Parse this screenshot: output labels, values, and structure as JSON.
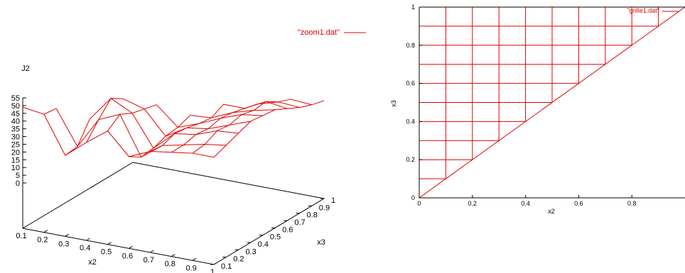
{
  "colors": {
    "series": "#e00000",
    "axis": "#000000"
  },
  "chart_data": [
    {
      "type": "line",
      "subtype": "surface-3d-wireframe",
      "title": "",
      "xlabel": "x2",
      "ylabel": "x3",
      "zlabel": "J2",
      "x_ticks": [
        "0.1",
        "0.2",
        "0.3",
        "0.4",
        "0.5",
        "0.6",
        "0.7",
        "0.8",
        "0.9",
        "1"
      ],
      "y_ticks": [
        "0.1",
        "0.2",
        "0.3",
        "0.4",
        "0.5",
        "0.6",
        "0.7",
        "0.8",
        "0.9",
        "1"
      ],
      "z_ticks": [
        "0",
        "5",
        "10",
        "15",
        "20",
        "25",
        "30",
        "35",
        "40",
        "45",
        "50",
        "55"
      ],
      "xlim": [
        0.1,
        1
      ],
      "ylim": [
        0.1,
        1
      ],
      "zlim": [
        0,
        55
      ],
      "legend": {
        "label": "\"zoom1.dat\"",
        "position": "top-right"
      },
      "grid": false,
      "series": [
        {
          "name": "\"zoom1.dat\"",
          "x": [
            0.1,
            0.2,
            0.3,
            0.4,
            0.5,
            0.6,
            0.7,
            0.8,
            0.9,
            1.0
          ],
          "y": [
            0.1,
            0.2,
            0.3,
            0.4,
            0.5,
            0.6,
            0.7,
            0.8,
            0.9,
            1.0
          ],
          "z": [
            [
              49,
              47,
              23,
              34,
              44,
              30,
              36,
              38,
              40,
              40
            ],
            [
              null,
              46,
              24,
              44,
              50,
              25,
              35,
              38,
              41,
              43
            ],
            [
              null,
              null,
              37,
              53,
              46,
              26,
              38,
              40,
              45,
              46
            ],
            [
              null,
              null,
              null,
              48,
              44,
              29,
              37,
              39,
              44,
              49
            ],
            [
              null,
              null,
              null,
              null,
              42,
              30,
              35,
              41,
              46,
              48
            ],
            [
              null,
              null,
              null,
              null,
              null,
              33,
              34,
              40,
              44,
              47
            ],
            [
              null,
              null,
              null,
              null,
              null,
              null,
              38,
              38,
              45,
              43
            ],
            [
              null,
              null,
              null,
              null,
              null,
              null,
              null,
              36,
              40,
              39
            ],
            [
              null,
              null,
              null,
              null,
              null,
              null,
              null,
              null,
              37,
              36
            ],
            [
              null,
              null,
              null,
              null,
              null,
              null,
              null,
              null,
              null,
              34
            ]
          ]
        }
      ]
    },
    {
      "type": "line",
      "subtype": "triangular-grid",
      "title": "",
      "xlabel": "x2",
      "ylabel": "x3",
      "x_ticks": [
        "0",
        "0.2",
        "0.4",
        "0.6",
        "0.8"
      ],
      "y_ticks": [
        "0",
        "0.2",
        "0.4",
        "0.6",
        "0.8",
        "1"
      ],
      "xlim": [
        0,
        1
      ],
      "ylim": [
        0,
        1
      ],
      "legend": {
        "label": "\"grille1.dat\"",
        "position": "top-right"
      },
      "grid": false,
      "series": [
        {
          "name": "\"grille1.dat\"",
          "grid_values": [
            0.0,
            0.1,
            0.2,
            0.3,
            0.4,
            0.5,
            0.6,
            0.7,
            0.8,
            0.9,
            1.0
          ],
          "description_points": "lines x3 = x2 .. 1 for each grid value; region x3 >= x2"
        }
      ]
    }
  ]
}
